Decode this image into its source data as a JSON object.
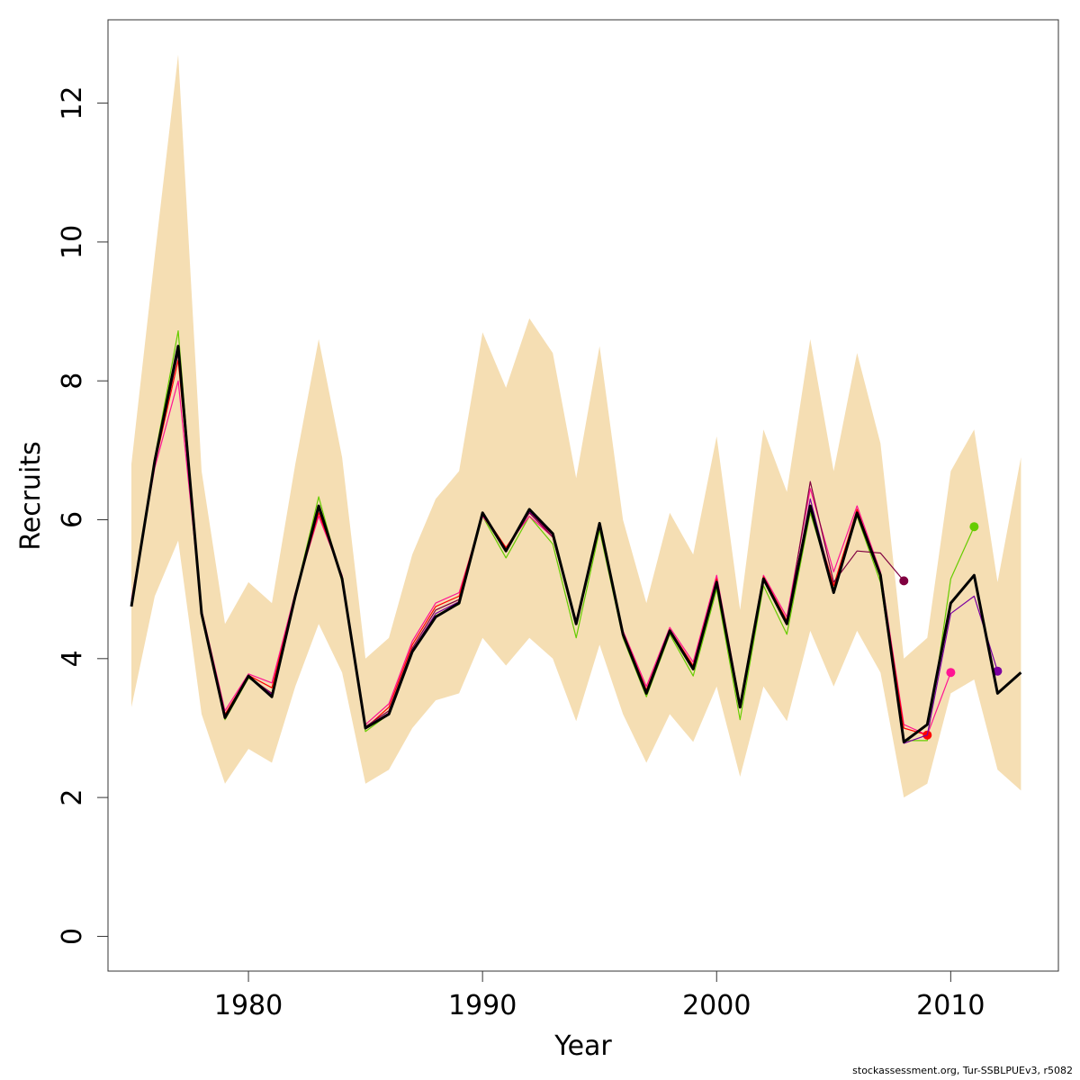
{
  "footer": "stockassessment.org, Tur-SSBLPUEv3, r5082",
  "chart_data": {
    "type": "line",
    "xlabel": "Year",
    "ylabel": "Recruits",
    "xlim": [
      1974,
      2014.6
    ],
    "ylim": [
      -0.5,
      13.2
    ],
    "x_ticks": [
      1980,
      1990,
      2000,
      2010
    ],
    "y_ticks": [
      0,
      2,
      4,
      6,
      8,
      10,
      12
    ],
    "grid": false,
    "legend": "none",
    "band_color": "#F5DEB3",
    "years": [
      1975,
      1976,
      1977,
      1978,
      1979,
      1980,
      1981,
      1982,
      1983,
      1984,
      1985,
      1986,
      1987,
      1988,
      1989,
      1990,
      1991,
      1992,
      1993,
      1994,
      1995,
      1996,
      1997,
      1998,
      1999,
      2000,
      2001,
      2002,
      2003,
      2004,
      2005,
      2006,
      2007,
      2008,
      2009,
      2010,
      2011,
      2012,
      2013
    ],
    "band_upper": [
      6.8,
      9.8,
      12.7,
      6.7,
      4.5,
      5.1,
      4.8,
      6.8,
      8.6,
      6.9,
      4.0,
      4.3,
      5.5,
      6.3,
      6.7,
      8.7,
      7.9,
      8.9,
      8.4,
      6.6,
      8.5,
      6.0,
      4.8,
      6.1,
      5.5,
      7.2,
      4.7,
      7.3,
      6.4,
      8.6,
      6.7,
      8.4,
      7.1,
      4.0,
      4.3,
      6.7,
      7.3,
      5.1,
      6.9
    ],
    "band_lower": [
      3.3,
      4.9,
      5.7,
      3.2,
      2.2,
      2.7,
      2.5,
      3.6,
      4.5,
      3.8,
      2.2,
      2.4,
      3.0,
      3.4,
      3.5,
      4.3,
      3.9,
      4.3,
      4.0,
      3.1,
      4.2,
      3.2,
      2.5,
      3.2,
      2.8,
      3.6,
      2.3,
      3.6,
      3.1,
      4.4,
      3.6,
      4.4,
      3.8,
      2.0,
      2.2,
      3.5,
      3.7,
      2.4,
      2.1
    ],
    "series": [
      {
        "color": "#000000",
        "width": 3,
        "x": [
          1975,
          1976,
          1977,
          1978,
          1979,
          1980,
          1981,
          1982,
          1983,
          1984,
          1985,
          1986,
          1987,
          1988,
          1989,
          1990,
          1991,
          1992,
          1993,
          1994,
          1995,
          1996,
          1997,
          1998,
          1999,
          2000,
          2001,
          2002,
          2003,
          2004,
          2005,
          2006,
          2007,
          2008,
          2009,
          2010,
          2011,
          2012,
          2013
        ],
        "y": [
          4.75,
          6.85,
          8.5,
          4.65,
          3.15,
          3.75,
          3.45,
          4.9,
          6.2,
          5.15,
          3.0,
          3.2,
          4.1,
          4.6,
          4.8,
          6.1,
          5.55,
          6.15,
          5.8,
          4.5,
          5.95,
          4.35,
          3.5,
          4.4,
          3.85,
          5.1,
          3.3,
          5.15,
          4.5,
          6.2,
          4.95,
          6.1,
          5.2,
          2.8,
          3.05,
          4.8,
          5.2,
          3.5,
          3.8
        ]
      },
      {
        "color": "#66CC00",
        "width": 1.2,
        "endpoint": true,
        "x": [
          1975,
          1976,
          1977,
          1978,
          1979,
          1980,
          1981,
          1982,
          1983,
          1984,
          1985,
          1986,
          1987,
          1988,
          1989,
          1990,
          1991,
          1992,
          1993,
          1994,
          1995,
          1996,
          1997,
          1998,
          1999,
          2000,
          2001,
          2002,
          2003,
          2004,
          2005,
          2006,
          2007,
          2008,
          2009,
          2010,
          2011
        ],
        "y": [
          4.8,
          6.9,
          8.72,
          4.6,
          3.12,
          3.72,
          3.5,
          4.92,
          6.33,
          5.1,
          2.95,
          3.2,
          4.1,
          4.62,
          4.78,
          6.05,
          5.45,
          6.05,
          5.65,
          4.3,
          5.85,
          4.3,
          3.45,
          4.35,
          3.75,
          5.0,
          3.12,
          5.05,
          4.35,
          6.1,
          5.0,
          6.05,
          5.1,
          2.82,
          2.82,
          5.15,
          5.9
        ]
      },
      {
        "color": "#FF1493",
        "width": 1.2,
        "endpoint": true,
        "x": [
          1975,
          1976,
          1977,
          1978,
          1979,
          1980,
          1981,
          1982,
          1983,
          1984,
          1985,
          1986,
          1987,
          1988,
          1989,
          1990,
          1991,
          1992,
          1993,
          1994,
          1995,
          1996,
          1997,
          1998,
          1999,
          2000,
          2001,
          2002,
          2003,
          2004,
          2005,
          2006,
          2007,
          2008,
          2009,
          2010
        ],
        "y": [
          4.85,
          6.75,
          8.0,
          4.7,
          3.25,
          3.78,
          3.65,
          4.95,
          6.05,
          5.2,
          3.05,
          3.35,
          4.25,
          4.8,
          4.95,
          6.05,
          5.6,
          6.05,
          5.75,
          4.55,
          5.9,
          4.4,
          3.6,
          4.45,
          3.95,
          5.2,
          3.35,
          5.2,
          4.6,
          6.45,
          5.25,
          6.2,
          5.25,
          3.05,
          2.9,
          3.8
        ]
      },
      {
        "color": "#FF0000",
        "width": 1.2,
        "endpoint": true,
        "x": [
          1975,
          1976,
          1977,
          1978,
          1979,
          1980,
          1981,
          1982,
          1983,
          1984,
          1985,
          1986,
          1987,
          1988,
          1989,
          1990,
          1991,
          1992,
          1993,
          1994,
          1995,
          1996,
          1997,
          1998,
          1999,
          2000,
          2001,
          2002,
          2003,
          2004,
          2005,
          2006,
          2007,
          2008,
          2009
        ],
        "y": [
          4.8,
          6.8,
          8.3,
          4.68,
          3.2,
          3.76,
          3.58,
          4.92,
          6.1,
          5.18,
          3.0,
          3.3,
          4.2,
          4.75,
          4.9,
          6.1,
          5.6,
          6.1,
          5.78,
          4.52,
          5.92,
          4.38,
          3.55,
          4.42,
          3.9,
          5.15,
          3.32,
          5.18,
          4.55,
          6.2,
          5.05,
          6.15,
          5.22,
          3.0,
          2.9
        ]
      },
      {
        "color": "#800040",
        "width": 1.2,
        "endpoint": true,
        "x": [
          1975,
          1976,
          1977,
          1978,
          1979,
          1980,
          1981,
          1982,
          1983,
          1984,
          1985,
          1986,
          1987,
          1988,
          1989,
          1990,
          1991,
          1992,
          1993,
          1994,
          1995,
          1996,
          1997,
          1998,
          1999,
          2000,
          2001,
          2002,
          2003,
          2004,
          2005,
          2006,
          2007,
          2008
        ],
        "y": [
          4.78,
          6.82,
          8.4,
          4.66,
          3.18,
          3.74,
          3.5,
          4.9,
          6.15,
          5.15,
          3.02,
          3.25,
          4.15,
          4.7,
          4.85,
          6.08,
          5.55,
          6.1,
          5.75,
          4.5,
          5.9,
          4.35,
          3.52,
          4.4,
          3.88,
          5.12,
          3.3,
          5.15,
          4.5,
          6.55,
          5.1,
          5.55,
          5.52,
          5.12
        ]
      },
      {
        "color": "#7B00A0",
        "width": 1.2,
        "endpoint": true,
        "x": [
          1975,
          1976,
          1977,
          1978,
          1979,
          1980,
          1981,
          1982,
          1983,
          1984,
          1985,
          1986,
          1987,
          1988,
          1989,
          1990,
          1991,
          1992,
          1993,
          1994,
          1995,
          1996,
          1997,
          1998,
          1999,
          2000,
          2001,
          2002,
          2003,
          2004,
          2005,
          2006,
          2007,
          2008,
          2009,
          2010,
          2011,
          2012
        ],
        "y": [
          4.77,
          6.83,
          8.45,
          4.66,
          3.16,
          3.74,
          3.48,
          4.9,
          6.18,
          5.15,
          3.01,
          3.22,
          4.12,
          4.65,
          4.82,
          6.1,
          5.55,
          6.12,
          5.78,
          4.5,
          5.92,
          4.35,
          3.5,
          4.4,
          3.86,
          5.1,
          3.3,
          5.15,
          4.5,
          6.3,
          4.98,
          6.1,
          5.2,
          2.78,
          2.9,
          4.65,
          4.9,
          3.82
        ]
      }
    ]
  }
}
